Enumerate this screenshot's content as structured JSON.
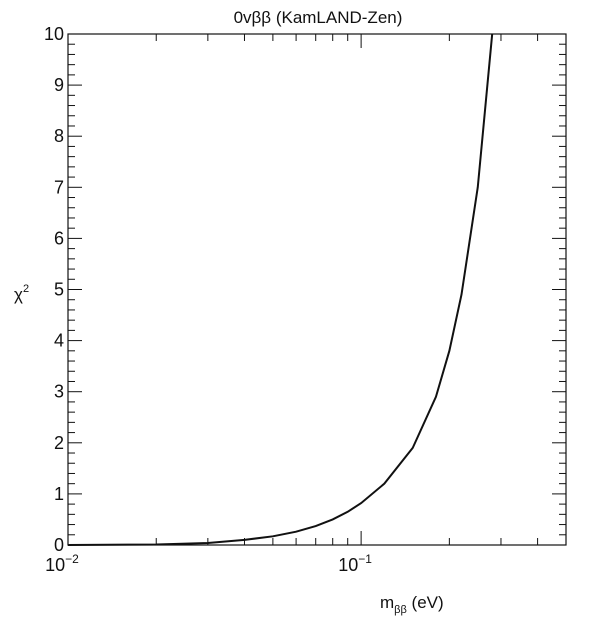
{
  "chart_data": {
    "type": "line",
    "title": "0vββ (KamLAND-Zen)",
    "xlabel_main": "m",
    "xlabel_sub": "ββ",
    "xlabel_unit": " (eV)",
    "ylabel_main": "χ",
    "ylabel_sup": "2",
    "x_scale": "log",
    "xlim": [
      0.01,
      0.5
    ],
    "ylim": [
      0,
      10
    ],
    "x_tick_labels": [
      {
        "x": 0.01,
        "base": "10",
        "exp": "−2"
      },
      {
        "x": 0.1,
        "base": "10",
        "exp": "−1"
      }
    ],
    "y_ticks": [
      0,
      1,
      2,
      3,
      4,
      5,
      6,
      7,
      8,
      9,
      10
    ],
    "y_tick_labels": [
      "0",
      "1",
      "2",
      "3",
      "4",
      "5",
      "6",
      "7",
      "8",
      "9",
      "10"
    ],
    "grid": false,
    "series": [
      {
        "x": [
          0.01,
          0.02,
          0.03,
          0.04,
          0.05,
          0.06,
          0.07,
          0.08,
          0.09,
          0.1,
          0.12,
          0.15,
          0.18,
          0.2,
          0.22,
          0.25,
          0.28
        ],
        "y": [
          0.0,
          0.01,
          0.04,
          0.1,
          0.17,
          0.26,
          0.37,
          0.5,
          0.65,
          0.82,
          1.2,
          1.9,
          2.9,
          3.8,
          4.9,
          7.0,
          10.0
        ]
      }
    ]
  }
}
